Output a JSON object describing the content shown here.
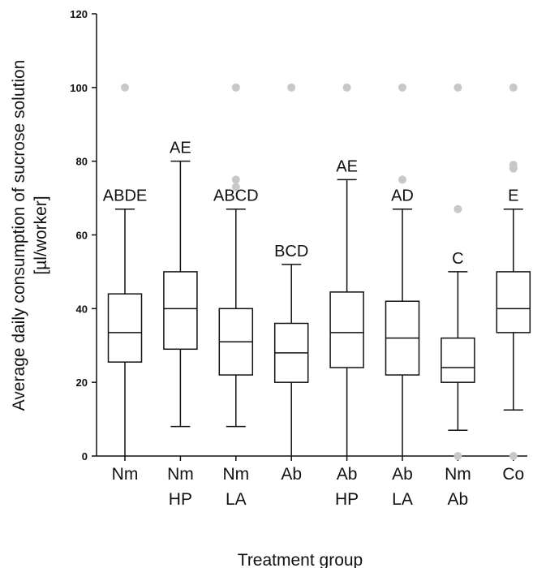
{
  "chart_data": {
    "type": "boxplot",
    "xlabel": "Treatment group",
    "ylabel_line1": "Average daily consumption of sucrose solution",
    "ylabel_line2": "[µl/worker]",
    "ylim": [
      0,
      120
    ],
    "yticks": [
      0,
      20,
      40,
      60,
      80,
      100,
      120
    ],
    "grid": false,
    "categories": [
      {
        "line1": "Nm",
        "line2": "",
        "letters": "ABDE",
        "min": 0,
        "q1": 25.5,
        "median": 33.5,
        "q3": 44,
        "max": 67,
        "outliers": [
          100
        ]
      },
      {
        "line1": "Nm",
        "line2": "HP",
        "letters": "AE",
        "min": 8,
        "q1": 29,
        "median": 40,
        "q3": 50,
        "max": 80,
        "outliers": []
      },
      {
        "line1": "Nm",
        "line2": "LA",
        "letters": "ABCD",
        "min": 8,
        "q1": 22,
        "median": 31,
        "q3": 40,
        "max": 67,
        "outliers": [
          73,
          75,
          100
        ]
      },
      {
        "line1": "Ab",
        "line2": "",
        "letters": "BCD",
        "min": 0,
        "q1": 20,
        "median": 28,
        "q3": 36,
        "max": 52,
        "outliers": [
          100
        ]
      },
      {
        "line1": "Ab",
        "line2": "HP",
        "letters": "AE",
        "min": 0,
        "q1": 24,
        "median": 33.5,
        "q3": 44.5,
        "max": 75,
        "outliers": [
          100
        ]
      },
      {
        "line1": "Ab",
        "line2": "LA",
        "letters": "AD",
        "min": 0,
        "q1": 22,
        "median": 32,
        "q3": 42,
        "max": 67,
        "outliers": [
          75,
          100
        ]
      },
      {
        "line1": "Nm",
        "line2": "Ab",
        "letters": "C",
        "min": 7,
        "q1": 20,
        "median": 24,
        "q3": 32,
        "max": 50,
        "outliers": [
          0,
          67,
          100
        ]
      },
      {
        "line1": "Co",
        "line2": "",
        "letters": "E",
        "min": 12.5,
        "q1": 33.5,
        "median": 40,
        "q3": 50,
        "max": 67,
        "outliers": [
          0,
          78,
          79,
          100
        ]
      }
    ],
    "colors": {
      "box_stroke": "#111111",
      "outlier": "#c8c8c8",
      "axis": "#111111"
    }
  }
}
